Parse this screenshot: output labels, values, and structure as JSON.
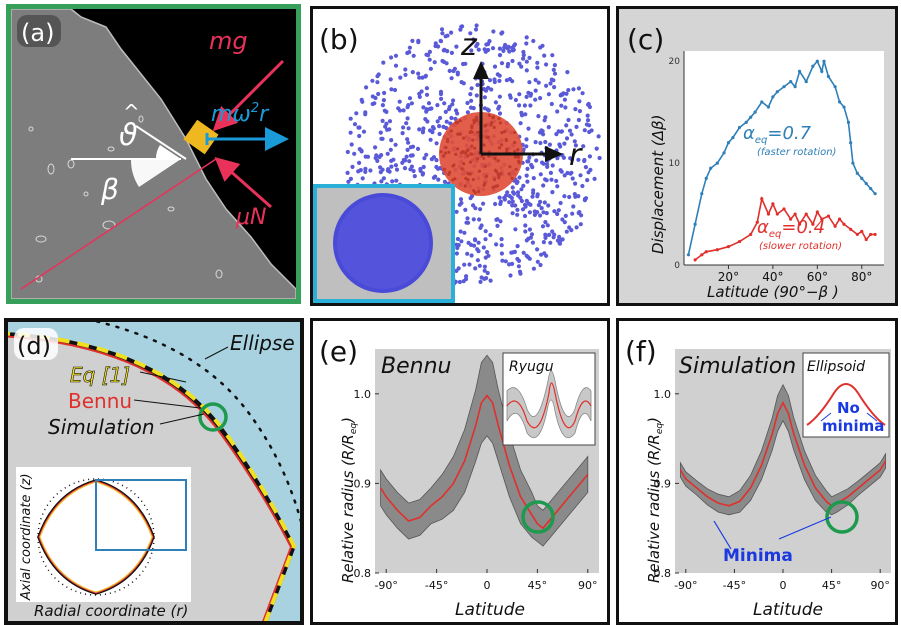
{
  "colors": {
    "accent_red": "#e8325a",
    "accent_blue": "#1a9ad6",
    "green_frame": "#36a05a",
    "cyan_frame": "#2ab0d8",
    "point_blue": "#5a5ad8",
    "sphere_red": "#e0503c",
    "ellipse_bg": "#a9d2e0",
    "minima_blue": "#1a3ae0",
    "line_blue": "#2f7fb8",
    "line_red": "#e0302c",
    "yellow": "#f0e020"
  },
  "panel_a": {
    "label": "(a)",
    "force_mg": "mg",
    "force_mw_base": "mω",
    "force_mw_exp": "2",
    "force_mw_r": "r",
    "force_muN": "μN",
    "angle_theta": "ϑ",
    "theta_hat": "^",
    "angle_beta": "β"
  },
  "panel_b": {
    "label": "(b)",
    "axis_z": "z",
    "axis_r": "r"
  },
  "panel_c": {
    "label": "(c)",
    "ylabel": "Displacement (Δβ)",
    "xlabel": "Latitude (90°−β )",
    "yticks": [
      "20",
      "10",
      "0"
    ],
    "xticks": [
      "20°",
      "40°",
      "60°",
      "80°"
    ],
    "curve_fast_label": "α",
    "curve_fast_sub": "eq",
    "curve_fast_val": "=0.7",
    "curve_fast_note": "(faster rotation)",
    "curve_slow_label": "α",
    "curve_slow_sub": "eq",
    "curve_slow_val": "=0.4",
    "curve_slow_note": "(slower rotation)"
  },
  "panel_d": {
    "label": "(d)",
    "ellipse": "Ellipse",
    "eq1": "Eq [1]",
    "bennu": "Bennu",
    "simulation": "Simulation",
    "inset_ylabel": "Axial coordinate (z)",
    "inset_xlabel": "Radial coordinate (r)"
  },
  "panel_e": {
    "label": "(e)",
    "title": "Bennu",
    "inset_title": "Ryugu",
    "ylabel_main": "Relative radius (R/R",
    "ylabel_sub": "eq",
    "ylabel_end": ")",
    "yticks": [
      "1.0",
      "0.9",
      "0.8"
    ],
    "xticks": [
      "-90°",
      "-45°",
      "0",
      "45°",
      "90°"
    ],
    "xlabel": "Latitude"
  },
  "panel_f": {
    "label": "(f)",
    "title": "Simulation",
    "inset_title": "Ellipsoid",
    "no_minima_1": "No",
    "no_minima_2": "minima",
    "minima": "Minima",
    "ylabel_main": "Relative radius (R/R",
    "ylabel_sub": "eq",
    "ylabel_end": ")",
    "yticks": [
      "1.0",
      "0.9",
      "0.8"
    ],
    "xticks": [
      "-90°",
      "-45°",
      "0",
      "45°",
      "90°"
    ],
    "xlabel": "Latitude"
  },
  "chart_data": [
    {
      "type": "line",
      "xlabel": "Latitude (90°−β )",
      "ylabel": "Displacement (Δβ)",
      "xlim": [
        0,
        90
      ],
      "ylim": [
        0,
        21
      ],
      "series": [
        {
          "name": "αeq=0.7 (faster rotation)",
          "x": [
            2,
            5,
            8,
            10,
            12,
            15,
            18,
            20,
            22,
            25,
            28,
            30,
            32,
            35,
            38,
            40,
            42,
            45,
            48,
            50,
            52,
            55,
            58,
            60,
            62,
            63,
            65,
            68,
            70,
            72,
            74,
            75,
            76,
            78,
            80,
            82,
            84,
            86
          ],
          "y": [
            1,
            4,
            7,
            8.5,
            9.5,
            10,
            11,
            12,
            12.5,
            13.5,
            14,
            14.5,
            15,
            16,
            15.5,
            16.5,
            17,
            17.5,
            18,
            17.5,
            19,
            18,
            19.5,
            20,
            19,
            20,
            18.5,
            17.5,
            16,
            15.5,
            14,
            12,
            10,
            9,
            8.5,
            8,
            7.5,
            7
          ]
        },
        {
          "name": "αeq=0.4 (slower rotation)",
          "x": [
            5,
            8,
            10,
            15,
            20,
            25,
            30,
            33,
            35,
            38,
            40,
            42,
            45,
            48,
            50,
            52,
            55,
            58,
            60,
            62,
            65,
            68,
            70,
            72,
            75,
            78,
            80,
            82,
            84,
            86
          ],
          "y": [
            0.5,
            1,
            1.3,
            1.5,
            1.8,
            2.3,
            3,
            4.2,
            6.5,
            5,
            6,
            5,
            5.5,
            4.5,
            5,
            4,
            5,
            4,
            5.2,
            4.5,
            4.8,
            3.8,
            4.5,
            4,
            3.5,
            3,
            3.3,
            2.5,
            3,
            3
          ]
        }
      ]
    },
    {
      "type": "line",
      "title": "Bennu",
      "xlabel": "Latitude",
      "ylabel": "Relative radius (R/Req)",
      "xlim": [
        -100,
        100
      ],
      "ylim": [
        0.8,
        1.05
      ],
      "series": [
        {
          "name": "Bennu",
          "x": [
            -95,
            -90,
            -80,
            -70,
            -60,
            -50,
            -40,
            -30,
            -20,
            -10,
            -5,
            0,
            5,
            10,
            20,
            30,
            40,
            45,
            50,
            60,
            70,
            80,
            90
          ],
          "y": [
            0.895,
            0.885,
            0.87,
            0.858,
            0.862,
            0.875,
            0.885,
            0.9,
            0.925,
            0.965,
            0.99,
            0.998,
            0.99,
            0.965,
            0.92,
            0.885,
            0.865,
            0.855,
            0.85,
            0.865,
            0.88,
            0.895,
            0.91
          ],
          "band": [
            0.02,
            0.02,
            0.02,
            0.02,
            0.02,
            0.02,
            0.025,
            0.03,
            0.035,
            0.04,
            0.045,
            0.045,
            0.045,
            0.04,
            0.035,
            0.03,
            0.025,
            0.02,
            0.02,
            0.02,
            0.02,
            0.02,
            0.02
          ]
        }
      ]
    },
    {
      "type": "line",
      "title": "Simulation",
      "xlabel": "Latitude",
      "ylabel": "Relative radius (R/Req)",
      "xlim": [
        -100,
        100
      ],
      "ylim": [
        0.8,
        1.05
      ],
      "series": [
        {
          "name": "Simulation",
          "x": [
            -95,
            -90,
            -80,
            -70,
            -60,
            -50,
            -40,
            -30,
            -20,
            -10,
            -5,
            0,
            5,
            10,
            20,
            30,
            40,
            45,
            50,
            60,
            70,
            80,
            90,
            95
          ],
          "y": [
            0.915,
            0.905,
            0.895,
            0.885,
            0.878,
            0.875,
            0.88,
            0.895,
            0.92,
            0.955,
            0.978,
            0.99,
            0.978,
            0.955,
            0.92,
            0.895,
            0.88,
            0.875,
            0.878,
            0.885,
            0.895,
            0.905,
            0.915,
            0.925
          ],
          "band": [
            0.008,
            0.008,
            0.008,
            0.009,
            0.01,
            0.01,
            0.012,
            0.014,
            0.016,
            0.018,
            0.02,
            0.02,
            0.02,
            0.018,
            0.016,
            0.014,
            0.012,
            0.01,
            0.01,
            0.009,
            0.008,
            0.008,
            0.008,
            0.008
          ]
        }
      ]
    }
  ]
}
